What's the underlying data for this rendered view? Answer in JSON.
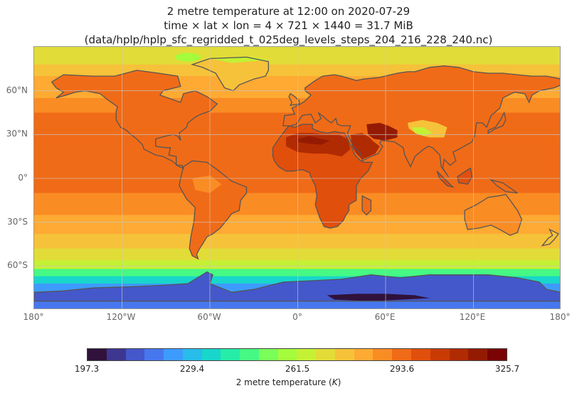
{
  "title": {
    "line1": "2 metre temperature at 12:00 on 2020-07-29",
    "line2": "time × lat × lon = 4 × 721 × 1440 = 31.7 MiB",
    "line3": "(data/hplp/hplp_sfc_regridded_t_025deg_levels_steps_204_216_228_240.nc)"
  },
  "chart_data": {
    "type": "heatmap",
    "title": "2 metre temperature at 12:00 on 2020-07-29",
    "variable": "2 metre temperature",
    "units": "K",
    "x_ticks": [
      "180°",
      "120°W",
      "60°W",
      "0°",
      "60°E",
      "120°E",
      "180°"
    ],
    "y_ticks": [
      "60°N",
      "30°N",
      "0°",
      "30°S",
      "60°S"
    ],
    "xlim": [
      -180,
      180
    ],
    "ylim": [
      -90,
      90
    ],
    "colorbar": {
      "label": "2 metre temperature (K)",
      "label_prefix": "2 metre temperature (",
      "label_unit": "K",
      "label_suffix": ")",
      "ticks": [
        "197.3",
        "229.4",
        "261.5",
        "293.6",
        "325.7"
      ],
      "min": 197.3,
      "max": 325.7,
      "colors": [
        "#30123b",
        "#3e378f",
        "#4458cb",
        "#4777ef",
        "#3e9bfe",
        "#28bceb",
        "#18d6cb",
        "#25eca7",
        "#46f884",
        "#7afe59",
        "#a4fc3c",
        "#c4f134",
        "#e2dc38",
        "#f6c23a",
        "#feaa33",
        "#fa8c24",
        "#f06b17",
        "#e14f0c",
        "#c93b05",
        "#b02b02",
        "#951a02",
        "#7a0403"
      ]
    },
    "grid": true,
    "coastline_color": "#555555"
  }
}
